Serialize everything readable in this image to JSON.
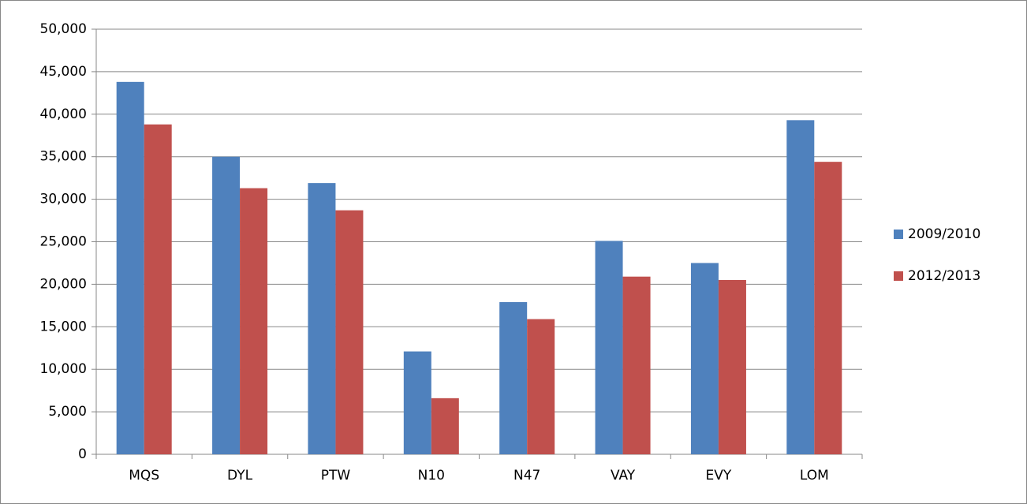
{
  "chart_data": {
    "type": "bar",
    "categories": [
      "MQS",
      "DYL",
      "PTW",
      "N10",
      "N47",
      "VAY",
      "EVY",
      "LOM"
    ],
    "series": [
      {
        "name": "2009/2010",
        "color": "#4f81bd",
        "values": [
          43800,
          35000,
          31900,
          12100,
          17900,
          25100,
          22500,
          39300
        ]
      },
      {
        "name": "2012/2013",
        "color": "#c0504d",
        "values": [
          38800,
          31300,
          28700,
          6600,
          15900,
          20900,
          20500,
          34400
        ]
      }
    ],
    "ylim": [
      0,
      50000
    ],
    "yticks": [
      0,
      {
        "value": 5000,
        "label": "5,000"
      },
      {
        "value": 10000,
        "label": "10,000"
      },
      {
        "value": 15000,
        "label": "15,000"
      },
      {
        "value": 20000,
        "label": "20,000"
      },
      {
        "value": 25000,
        "label": "25,000"
      },
      {
        "value": 30000,
        "label": "30,000"
      },
      {
        "value": 35000,
        "label": "35,000"
      },
      {
        "value": 40000,
        "label": "40,000"
      },
      {
        "value": 45000,
        "label": "45,000"
      },
      {
        "value": 50000,
        "label": "50,000"
      }
    ],
    "grid": true,
    "legend": "right"
  }
}
